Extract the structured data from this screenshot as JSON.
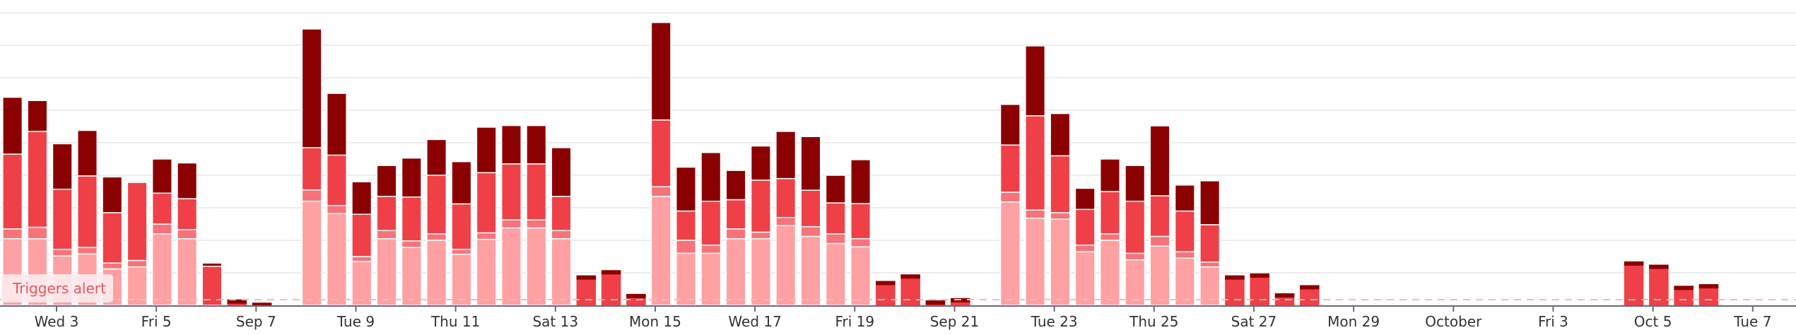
{
  "chart_data": {
    "type": "bar",
    "stacked": true,
    "grid": true,
    "ylim": [
      0,
      900
    ],
    "x_tick_labels": [
      "Wed 3",
      "Fri 5",
      "Sep 7",
      "Tue 9",
      "Thu 11",
      "Sat 13",
      "Mon 15",
      "Wed 17",
      "Fri 19",
      "Sep 21",
      "Tue 23",
      "Thu 25",
      "Sat 27",
      "Mon 29",
      "October",
      "Fri 3",
      "Oct 5",
      "Tue 7"
    ],
    "tick_bar_index": [
      2,
      6,
      10,
      14,
      18,
      22,
      26,
      30,
      34,
      38,
      42,
      46,
      50,
      54,
      58,
      62,
      66,
      70
    ],
    "alert_label": "Triggers alert",
    "colors": {
      "s1": "#ffa0a3",
      "s2": "#f7737a",
      "s3": "#ef4047",
      "s4": "#8b0000",
      "grid": "#e6e6e6",
      "axis": "#666a8a",
      "alert_badge": "#fde9ec",
      "alert_line": "#f6b8bd"
    },
    "series": [
      {
        "values": [
          205,
          205,
          152,
          158,
          112,
          118,
          220,
          205,
          0,
          0,
          0,
          0,
          320,
          282,
          135,
          205,
          178,
          200,
          157,
          203,
          238,
          238,
          205,
          0,
          0,
          0,
          335,
          160,
          160,
          205,
          205,
          245,
          212,
          190,
          180,
          0,
          0,
          0,
          0,
          0,
          318,
          268,
          265,
          165,
          200,
          140,
          182,
          145,
          118,
          0,
          0,
          0,
          0,
          0,
          0,
          0,
          0,
          0,
          0,
          0,
          0,
          0,
          0,
          0,
          0,
          0,
          0,
          0,
          0,
          0,
          0,
          0
        ]
      },
      {
        "values": [
          30,
          35,
          20,
          20,
          18,
          20,
          30,
          28,
          0,
          0,
          0,
          0,
          35,
          25,
          15,
          25,
          20,
          20,
          15,
          20,
          25,
          25,
          25,
          0,
          0,
          0,
          30,
          40,
          25,
          30,
          20,
          25,
          30,
          30,
          25,
          0,
          0,
          0,
          0,
          0,
          30,
          25,
          20,
          20,
          20,
          20,
          30,
          20,
          15,
          0,
          0,
          0,
          0,
          0,
          0,
          0,
          0,
          0,
          0,
          0,
          0,
          0,
          0,
          0,
          0,
          0,
          0,
          0,
          0,
          0,
          0,
          0
        ]
      },
      {
        "values": [
          230,
          295,
          185,
          220,
          155,
          240,
          95,
          95,
          120,
          0,
          0,
          0,
          130,
          155,
          130,
          105,
          135,
          180,
          140,
          185,
          172,
          172,
          105,
          0,
          0,
          0,
          205,
          90,
          135,
          90,
          160,
          120,
          112,
          95,
          108,
          0,
          0,
          0,
          0,
          0,
          145,
          290,
          175,
          110,
          130,
          160,
          125,
          125,
          115,
          0,
          0,
          0,
          0,
          0,
          0,
          0,
          0,
          0,
          0,
          0,
          0,
          0,
          0,
          0,
          0,
          0,
          0,
          0,
          0,
          0,
          0,
          0
        ]
      },
      {
        "values": [
          175,
          95,
          140,
          140,
          110,
          0,
          105,
          110,
          10,
          0,
          0,
          0,
          365,
          190,
          100,
          95,
          120,
          110,
          130,
          140,
          118,
          118,
          150,
          0,
          0,
          0,
          300,
          135,
          150,
          90,
          105,
          145,
          165,
          85,
          135,
          0,
          0,
          0,
          0,
          0,
          125,
          215,
          130,
          65,
          100,
          110,
          215,
          80,
          135,
          0,
          0,
          0,
          0,
          0,
          0,
          0,
          0,
          0,
          0,
          0,
          0,
          0,
          0,
          0,
          0,
          0,
          0,
          0,
          0,
          0,
          0,
          0
        ]
      }
    ],
    "alert_values": [
      0,
      0,
      0,
      0,
      0,
      0,
      0,
      0,
      0,
      18,
      8,
      0,
      0,
      0,
      0,
      0,
      0,
      0,
      0,
      0,
      0,
      0,
      0,
      92,
      108,
      35,
      0,
      0,
      0,
      0,
      0,
      0,
      0,
      0,
      0,
      75,
      95,
      15,
      22,
      0,
      0,
      0,
      0,
      0,
      0,
      0,
      0,
      0,
      0,
      92,
      98,
      37,
      62,
      0,
      0,
      0,
      0,
      0,
      0,
      0,
      0,
      0,
      0,
      0,
      0,
      135,
      125,
      60,
      65,
      0,
      0,
      0
    ],
    "overview_values": [
      0,
      0,
      0,
      0,
      0,
      0,
      0,
      0,
      0,
      0,
      0,
      0,
      0,
      0,
      0,
      0,
      0,
      0,
      0,
      0,
      0,
      0,
      0,
      0,
      0,
      0,
      0,
      0,
      0,
      0,
      0,
      0,
      0,
      0,
      0,
      0,
      0,
      0,
      0,
      0,
      0,
      0,
      0,
      0,
      0,
      0,
      0,
      0,
      0,
      0,
      0,
      0,
      0,
      0,
      0,
      0,
      0,
      0,
      0,
      0,
      0,
      0,
      0,
      0,
      0,
      0,
      0,
      0,
      0,
      0,
      0,
      0
    ]
  }
}
